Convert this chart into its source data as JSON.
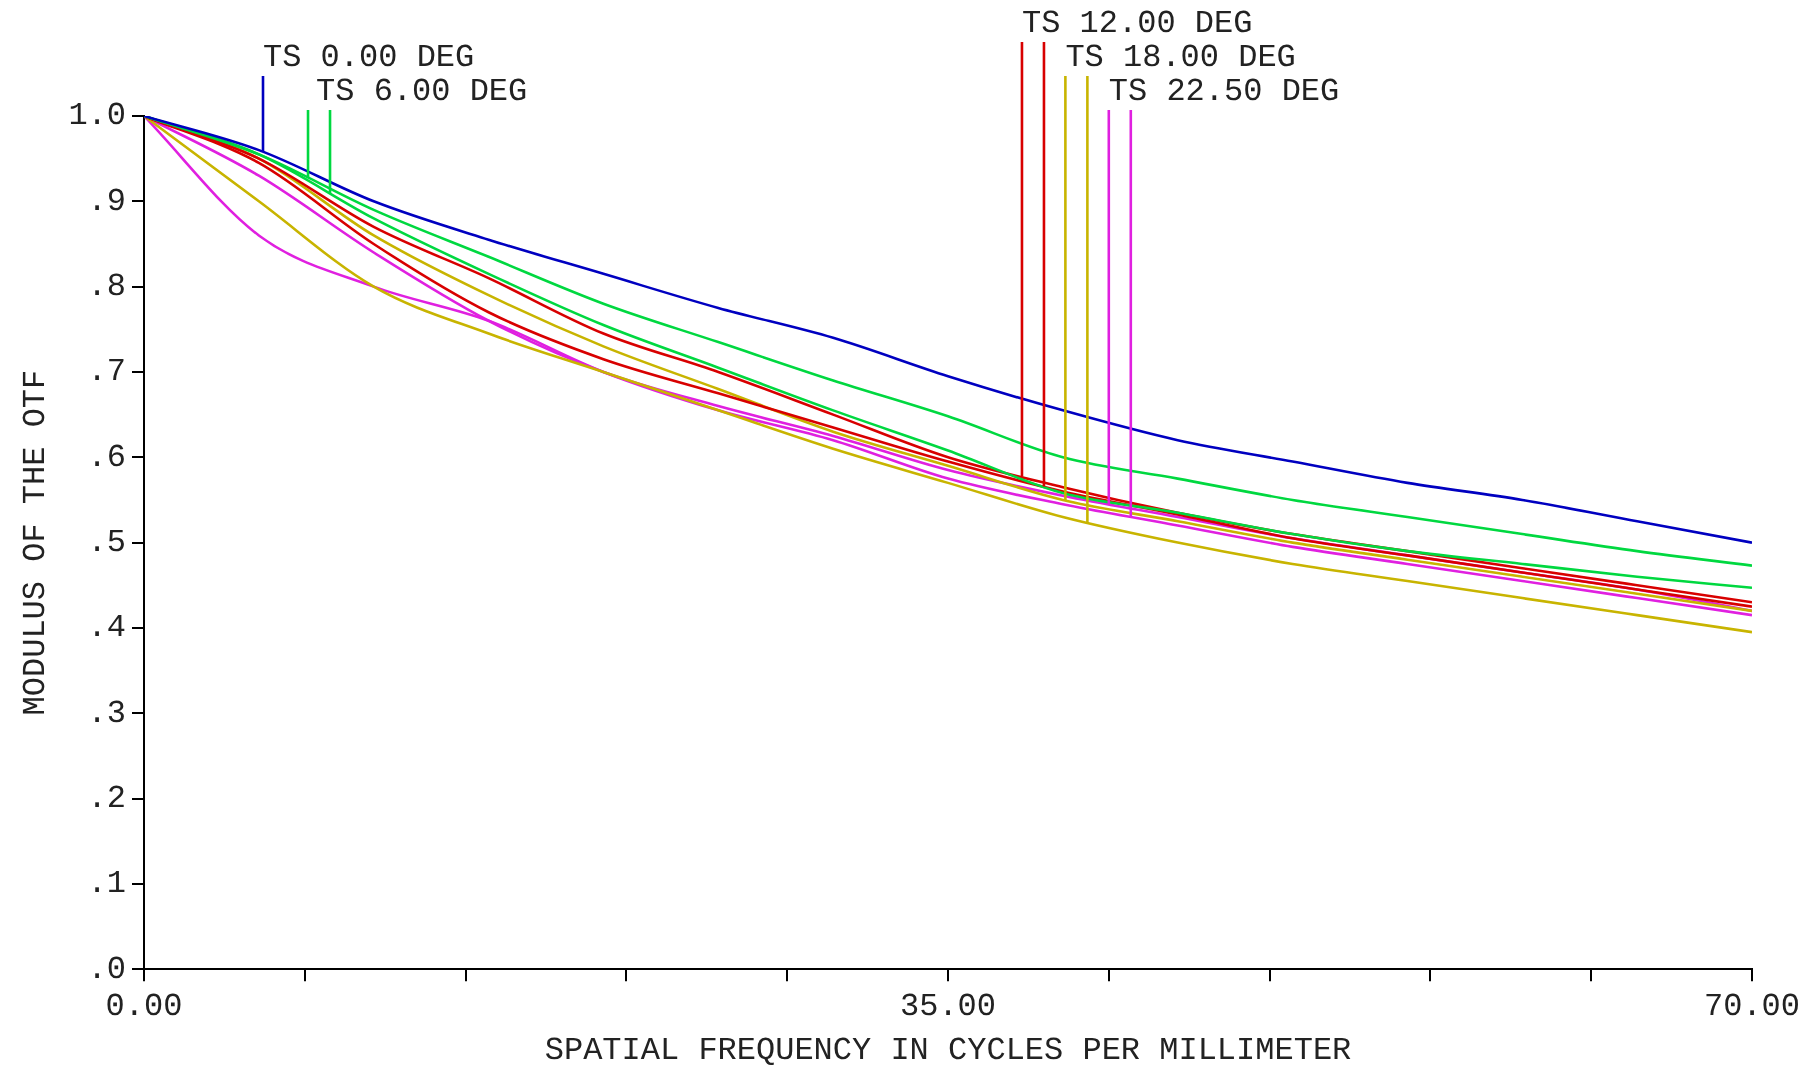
{
  "chart_data": {
    "type": "line",
    "xlabel": "SPATIAL FREQUENCY IN CYCLES PER MILLIMETER",
    "ylabel": "MODULUS OF THE OTF",
    "x": [
      0,
      5,
      10,
      15,
      20,
      25,
      30,
      35,
      40,
      45,
      50,
      55,
      60,
      65,
      70
    ],
    "xlim": [
      0,
      70
    ],
    "xticks": [
      {
        "value": 0,
        "label": "0.00"
      },
      {
        "value": 7,
        "label": null
      },
      {
        "value": 14,
        "label": null
      },
      {
        "value": 21,
        "label": null
      },
      {
        "value": 28,
        "label": null
      },
      {
        "value": 35,
        "label": "35.00"
      },
      {
        "value": 42,
        "label": null
      },
      {
        "value": 49,
        "label": null
      },
      {
        "value": 56,
        "label": null
      },
      {
        "value": 63,
        "label": null
      },
      {
        "value": 70,
        "label": "70.00"
      }
    ],
    "ylim": [
      0,
      1
    ],
    "yticks": [
      {
        "value": 0,
        "label": ".0"
      },
      {
        "value": 0.1,
        "label": ".1"
      },
      {
        "value": 0.2,
        "label": ".2"
      },
      {
        "value": 0.3,
        "label": ".3"
      },
      {
        "value": 0.4,
        "label": ".4"
      },
      {
        "value": 0.5,
        "label": ".5"
      },
      {
        "value": 0.6,
        "label": ".6"
      },
      {
        "value": 0.7,
        "label": ".7"
      },
      {
        "value": 0.8,
        "label": ".8"
      },
      {
        "value": 0.9,
        "label": ".9"
      },
      {
        "value": 1,
        "label": "1.0"
      }
    ],
    "grid": false,
    "legend": "top",
    "marker": "none",
    "line_style": "solid",
    "series": [
      {
        "name": "TS 0.00 DEG",
        "color": "#0000c0",
        "values": [
          1,
          0.96,
          0.9,
          0.855,
          0.815,
          0.775,
          0.74,
          0.695,
          0.655,
          0.62,
          0.595,
          0.57,
          0.55,
          0.525,
          0.5
        ]
      },
      {
        "name": "TS 6.00 DEG",
        "color": "#00d840",
        "values": [
          1,
          0.955,
          0.89,
          0.835,
          0.78,
          0.735,
          0.69,
          0.648,
          0.6,
          0.575,
          0.55,
          0.53,
          0.51,
          0.49,
          0.473
        ]
      },
      {
        "color": "#00d840",
        "values": [
          1,
          0.955,
          0.88,
          0.815,
          0.755,
          0.705,
          0.655,
          0.608,
          0.558,
          0.535,
          0.51,
          0.49,
          0.475,
          0.46,
          0.447
        ]
      },
      {
        "name": "TS 12.00 DEG",
        "color": "#d80000",
        "values": [
          1,
          0.95,
          0.87,
          0.81,
          0.745,
          0.7,
          0.65,
          0.6,
          0.565,
          0.535,
          0.51,
          0.49,
          0.47,
          0.45,
          0.43
        ]
      },
      {
        "color": "#d80000",
        "values": [
          1,
          0.945,
          0.85,
          0.77,
          0.715,
          0.675,
          0.635,
          0.595,
          0.56,
          0.533,
          0.505,
          0.485,
          0.465,
          0.445,
          0.425
        ]
      },
      {
        "name": "TS 18.00 DEG",
        "color": "#c8b400",
        "values": [
          1,
          0.95,
          0.86,
          0.79,
          0.73,
          0.68,
          0.63,
          0.59,
          0.55,
          0.525,
          0.5,
          0.48,
          0.46,
          0.44,
          0.42
        ]
      },
      {
        "color": "#c8b400",
        "values": [
          1,
          0.9,
          0.8,
          0.745,
          0.7,
          0.655,
          0.61,
          0.57,
          0.53,
          0.5,
          0.475,
          0.455,
          0.435,
          0.415,
          0.395
        ]
      },
      {
        "name": "TS 22.50 DEG",
        "color": "#e020e0",
        "values": [
          1,
          0.93,
          0.84,
          0.76,
          0.7,
          0.66,
          0.625,
          0.585,
          0.555,
          0.53,
          0.505,
          0.485,
          0.465,
          0.445,
          0.42
        ]
      },
      {
        "color": "#e020e0",
        "values": [
          1,
          0.86,
          0.8,
          0.76,
          0.7,
          0.655,
          0.62,
          0.575,
          0.545,
          0.52,
          0.495,
          0.475,
          0.455,
          0.435,
          0.415
        ]
      }
    ]
  }
}
